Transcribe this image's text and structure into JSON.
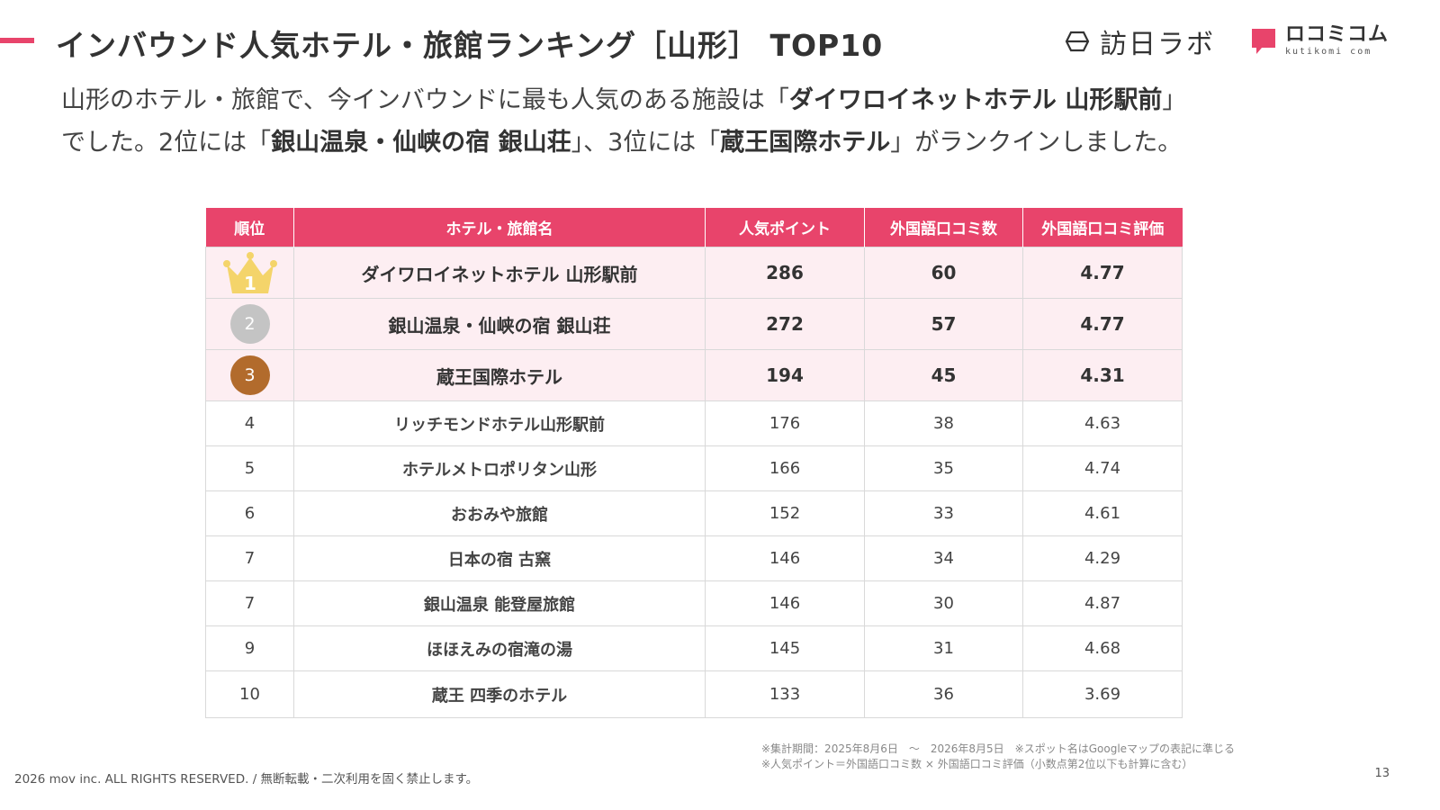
{
  "header": {
    "title": "インバウンド人気ホテル・旅館ランキング［山形］ TOP10",
    "logo_houmon": "訪日ラボ",
    "logo_kuchikomi_main": "ロコミコム",
    "logo_kuchikomi_sub": "kutikomi com",
    "accent_color": "#e8446b"
  },
  "lead": {
    "line1_pre": "山形のホテル・旅館で、今インバウンドに最も人気のある施設は「",
    "line1_bold": "ダイワロイネットホテル 山形駅前",
    "line1_post": "」",
    "line2_pre": "でした。2位には「",
    "line2_bold1": "銀山温泉・仙峡の宿 銀山荘",
    "line2_mid": "」、3位には「",
    "line2_bold2": "蔵王国際ホテル",
    "line2_post": "」がランクインしました。"
  },
  "table": {
    "headers": [
      "順位",
      "ホテル・旅館名",
      "人気ポイント",
      "外国語口コミ数",
      "外国語口コミ評価"
    ],
    "rows": [
      {
        "rank": "1",
        "name": "ダイワロイネットホテル 山形駅前",
        "points": "286",
        "reviews": "60",
        "rating": "4.77"
      },
      {
        "rank": "2",
        "name": "銀山温泉・仙峡の宿 銀山荘",
        "points": "272",
        "reviews": "57",
        "rating": "4.77"
      },
      {
        "rank": "3",
        "name": "蔵王国際ホテル",
        "points": "194",
        "reviews": "45",
        "rating": "4.31"
      },
      {
        "rank": "4",
        "name": "リッチモンドホテル山形駅前",
        "points": "176",
        "reviews": "38",
        "rating": "4.63"
      },
      {
        "rank": "5",
        "name": "ホテルメトロポリタン山形",
        "points": "166",
        "reviews": "35",
        "rating": "4.74"
      },
      {
        "rank": "6",
        "name": "おおみや旅館",
        "points": "152",
        "reviews": "33",
        "rating": "4.61"
      },
      {
        "rank": "7",
        "name": "日本の宿 古窯",
        "points": "146",
        "reviews": "34",
        "rating": "4.29"
      },
      {
        "rank": "7",
        "name": "銀山温泉 能登屋旅館",
        "points": "146",
        "reviews": "30",
        "rating": "4.87"
      },
      {
        "rank": "9",
        "name": "ほほえみの宿滝の湯",
        "points": "145",
        "reviews": "31",
        "rating": "4.68"
      },
      {
        "rank": "10",
        "name": "蔵王 四季のホテル",
        "points": "133",
        "reviews": "36",
        "rating": "3.69"
      }
    ]
  },
  "notes": {
    "line1": "※集計期間：2025年8月6日　～　2026年8月5日　※スポット名はGoogleマップの表記に準じる",
    "line2": "※人気ポイント＝外国語口コミ数 × 外国語口コミ評価（小数点第2位以下も計算に含む）"
  },
  "footer": {
    "copyright": "2026 mov inc. ALL RIGHTS RESERVED. / 無断転載・二次利用を固く禁止します。",
    "page_number": "13"
  },
  "medal_colors": {
    "gold": "#f4d46a",
    "silver": "#c4c4c4",
    "bronze": "#b26b2c"
  }
}
